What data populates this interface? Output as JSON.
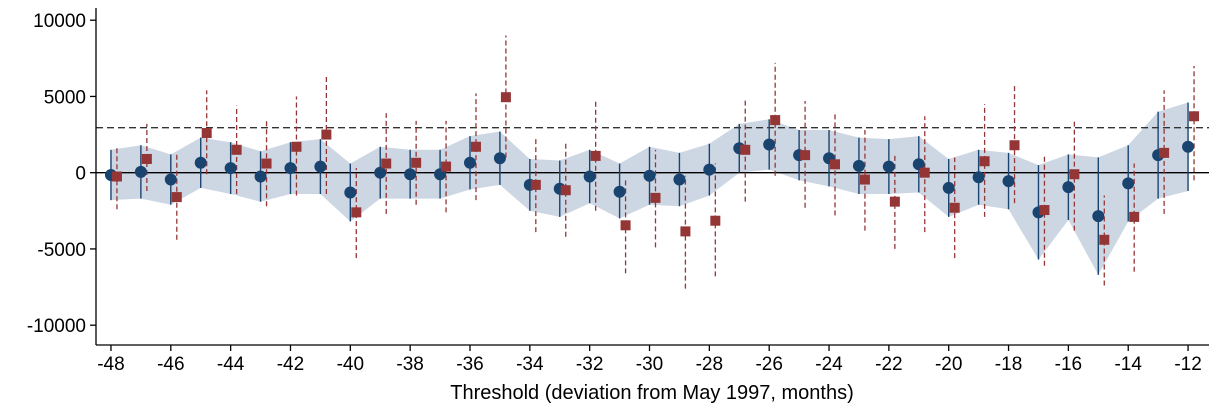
{
  "chart_data": {
    "type": "scatter",
    "xlabel": "Threshold (deviation from May 1997, months)",
    "ylabel": "",
    "xlim": [
      -48.5,
      -11.3
    ],
    "ylim": [
      -11300,
      10800
    ],
    "x_ticks": [
      -48,
      -46,
      -44,
      -42,
      -40,
      -38,
      -36,
      -34,
      -32,
      -30,
      -28,
      -26,
      -24,
      -22,
      -20,
      -18,
      -16,
      -14,
      -12
    ],
    "y_ticks": [
      -10000,
      -5000,
      0,
      5000,
      10000
    ],
    "x_tick_labels": [
      "-48",
      "-46",
      "-44",
      "-42",
      "-40",
      "-38",
      "-36",
      "-34",
      "-32",
      "-30",
      "-28",
      "-26",
      "-24",
      "-22",
      "-20",
      "-18",
      "-16",
      "-14",
      "-12"
    ],
    "y_tick_labels": [
      "-10000",
      "-5000",
      "0",
      "5000",
      "10000"
    ],
    "reference_lines": [
      0,
      2950
    ],
    "grid": false,
    "colors": {
      "series_a": "#1a4470",
      "series_a_band": "#cdd7e4",
      "series_b": "#943636",
      "zero_line": "#000000",
      "dashed_line": "#333333"
    },
    "series": [
      {
        "marker": "circle",
        "x": [
          -48,
          -47,
          -46,
          -45,
          -44,
          -43,
          -42,
          -41,
          -40,
          -39,
          -38,
          -37,
          -36,
          -35,
          -34,
          -33,
          -32,
          -31,
          -30,
          -29,
          -28,
          -27,
          -26,
          -25,
          -24,
          -23,
          -22,
          -21,
          -20,
          -19,
          -18,
          -17,
          -16,
          -15,
          -14,
          -13,
          -12
        ],
        "y": [
          -150,
          50,
          -450,
          650,
          300,
          -250,
          300,
          400,
          -1300,
          0,
          -100,
          -100,
          650,
          950,
          -800,
          -1050,
          -250,
          -1250,
          -200,
          -450,
          200,
          1600,
          1850,
          1150,
          950,
          450,
          400,
          550,
          -1000,
          -300,
          -550,
          -2600,
          -950,
          -2850,
          -700,
          1150,
          1700
        ],
        "ci_low": [
          -1800,
          -1700,
          -2100,
          -1000,
          -1400,
          -1900,
          -1400,
          -1400,
          -3200,
          -1700,
          -1700,
          -1700,
          -1100,
          -800,
          -2500,
          -2900,
          -2000,
          -3000,
          -2100,
          -2200,
          -1500,
          0,
          200,
          -500,
          -900,
          -1400,
          -1400,
          -1300,
          -2900,
          -2100,
          -2400,
          -5700,
          -3100,
          -6700,
          -3200,
          -1700,
          -1200
        ],
        "ci_high": [
          1500,
          1800,
          1200,
          2300,
          2000,
          1400,
          2000,
          2200,
          600,
          1700,
          1500,
          1500,
          2400,
          2700,
          900,
          800,
          1500,
          600,
          1700,
          1300,
          1900,
          3200,
          3500,
          2800,
          2800,
          2300,
          2200,
          2400,
          900,
          1500,
          1300,
          500,
          1200,
          1000,
          1800,
          4000,
          4600
        ]
      },
      {
        "marker": "square",
        "x": [
          -47.8,
          -46.8,
          -45.8,
          -44.8,
          -43.8,
          -42.8,
          -41.8,
          -40.8,
          -39.8,
          -38.8,
          -37.8,
          -36.8,
          -35.8,
          -34.8,
          -33.8,
          -32.8,
          -31.8,
          -30.8,
          -29.8,
          -28.8,
          -27.8,
          -26.8,
          -25.8,
          -24.8,
          -23.8,
          -22.8,
          -21.8,
          -20.8,
          -19.8,
          -18.8,
          -17.8,
          -16.8,
          -15.8,
          -14.8,
          -13.8,
          -12.8,
          -11.8
        ],
        "y": [
          -250,
          900,
          -1600,
          2600,
          1500,
          600,
          1700,
          2500,
          -2600,
          600,
          650,
          400,
          1700,
          4950,
          -800,
          -1150,
          1100,
          -3450,
          -1650,
          -3850,
          -3150,
          1500,
          3450,
          1150,
          550,
          -450,
          -1900,
          0,
          -2300,
          750,
          1800,
          -2450,
          -100,
          -4400,
          -2900,
          1300,
          3700
        ],
        "ci_low": [
          -2400,
          -1200,
          -4400,
          -100,
          -1400,
          -2200,
          -1500,
          -1400,
          -5600,
          -2700,
          -2100,
          -2600,
          -1800,
          1000,
          -3900,
          -4200,
          -2500,
          -6600,
          -4900,
          -7600,
          -6800,
          -1900,
          -200,
          -2300,
          -2800,
          -3800,
          -5000,
          -3900,
          -5600,
          -2900,
          -2000,
          -6100,
          -3800,
          -7400,
          -6500,
          -2700,
          -500
        ],
        "ci_high": [
          1700,
          3200,
          1300,
          5400,
          4400,
          3400,
          5000,
          6400,
          300,
          3900,
          3400,
          3400,
          5200,
          9000,
          2300,
          2000,
          4800,
          -400,
          1500,
          -200,
          600,
          4900,
          7200,
          4700,
          3900,
          2800,
          1300,
          3700,
          1000,
          4500,
          5700,
          1200,
          3500,
          -1500,
          600,
          5400,
          7000
        ]
      }
    ]
  }
}
